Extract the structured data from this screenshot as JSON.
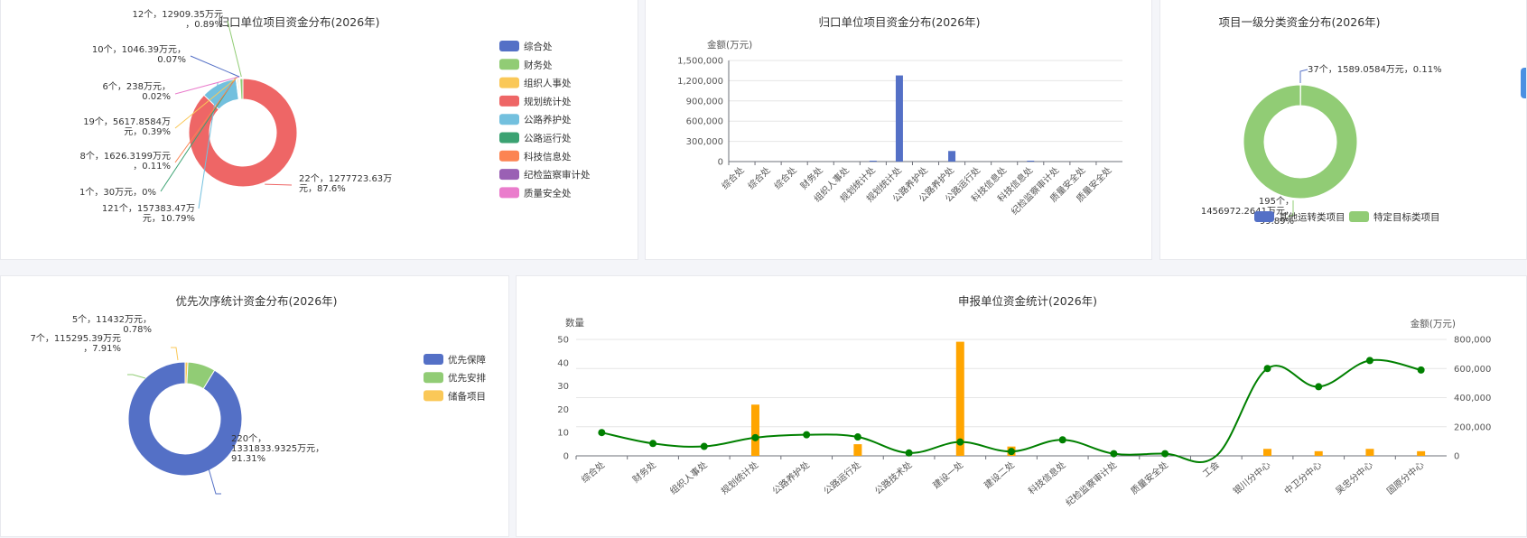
{
  "colors": {
    "blue": "#5470c6",
    "green": "#91cc75",
    "yellow": "#fac858",
    "red": "#ee6666",
    "cyan": "#73c0de",
    "teal": "#3ba272",
    "orange": "#fc8452",
    "purple": "#9a60b4",
    "pink": "#ea7ccc",
    "bar_orange": "#ffa500",
    "line_green": "#008000"
  },
  "chart_data": [
    {
      "type": "pie",
      "title": "归口单位项目资金分布(2026年)",
      "legend": [
        "综合处",
        "财务处",
        "组织人事处",
        "规划统计处",
        "公路养护处",
        "公路运行处",
        "科技信息处",
        "纪检监察审计处",
        "质量安全处"
      ],
      "slices": [
        {
          "name": "规划统计处",
          "value": 1277723.63,
          "label_lines": [
            "22个，1277723.63万",
            "元，87.6%"
          ]
        },
        {
          "name": "公路养护处",
          "value": 157383.47,
          "label_lines": [
            "121个，157383.47万",
            "元，10.79%"
          ]
        },
        {
          "name": "公路运行处",
          "value": 30,
          "label_lines": [
            "1个，30万元，0%"
          ]
        },
        {
          "name": "科技信息处",
          "value": 1626.3199,
          "label_lines": [
            "8个，1626.3199万元",
            "，0.11%"
          ]
        },
        {
          "name": "组织人事处",
          "value": 5617.8584,
          "label_lines": [
            "19个，5617.8584万",
            "元，0.39%"
          ]
        },
        {
          "name": "质量安全处",
          "value": 238,
          "label_lines": [
            "6个，238万元，",
            "0.02%"
          ]
        },
        {
          "name": "综合处",
          "value": 1046.39,
          "label_lines": [
            "10个，1046.39万元，",
            "0.07%"
          ]
        },
        {
          "name": "财务处",
          "value": 12909.35,
          "label_lines": [
            "12个，12909.35万元",
            "，0.89%"
          ]
        }
      ]
    },
    {
      "type": "bar",
      "title": "归口单位项目资金分布(2026年)",
      "ylabel": "金额(万元)",
      "yticks": [
        "0",
        "300,000",
        "600,000",
        "900,000",
        "1,200,000",
        "1,500,000"
      ],
      "ylim": [
        0,
        1500000
      ],
      "categories": [
        "综合处",
        "综合处",
        "综合处",
        "财务处",
        "组织人事处",
        "规划统计处",
        "规划统计处",
        "公路养护处",
        "公路养护处",
        "公路运行处",
        "科技信息处",
        "科技信息处",
        "纪检监察审计处",
        "质量安全处",
        "质量安全处"
      ],
      "values": [
        0,
        0,
        0,
        0,
        0,
        5000,
        1278000,
        0,
        157000,
        0,
        0,
        1500,
        0,
        0,
        0
      ]
    },
    {
      "type": "pie",
      "title": "项目一级分类资金分布(2026年)",
      "legend": [
        "其他运转类项目",
        "特定目标类项目"
      ],
      "slices": [
        {
          "name": "其他运转类项目",
          "value": 1589.0584,
          "label_lines": [
            "37个，1589.0584万元，0.11%"
          ]
        },
        {
          "name": "特定目标类项目",
          "value": 1456972.2641,
          "label_lines": [
            "195个，",
            "1456972.2641万元，",
            "99.89%"
          ]
        }
      ]
    },
    {
      "type": "pie",
      "title": "优先次序统计资金分布(2026年)",
      "legend": [
        "优先保障",
        "优先安排",
        "储备项目"
      ],
      "slices": [
        {
          "name": "优先保障",
          "value": 1331833.9325,
          "label_lines": [
            "220个，",
            "1331833.9325万元，",
            "91.31%"
          ]
        },
        {
          "name": "优先安排",
          "value": 115295.39,
          "label_lines": [
            "7个，115295.39万元",
            "，7.91%"
          ]
        },
        {
          "name": "储备项目",
          "value": 11432,
          "label_lines": [
            "5个，11432万元，",
            "0.78%"
          ]
        }
      ]
    },
    {
      "type": "bar",
      "title": "申报单位资金统计(2026年)",
      "ylabel": "数量",
      "ylabel2": "金额(万元)",
      "yticks": [
        "0",
        "10",
        "20",
        "30",
        "40",
        "50"
      ],
      "yticks2": [
        "0",
        "200,000",
        "400,000",
        "600,000",
        "800,000"
      ],
      "ylim": [
        0,
        50
      ],
      "ylim2": [
        0,
        800000
      ],
      "categories": [
        "综合处",
        "财务处",
        "组织人事处",
        "规划统计处",
        "公路养护处",
        "公路运行处",
        "公路技术处",
        "建设一处",
        "建设二处",
        "科技信息处",
        "纪检监察审计处",
        "质量安全处",
        "工会",
        "银川分中心",
        "中卫分中心",
        "吴忠分中心",
        "固原分中心"
      ],
      "series": [
        {
          "type": "bar",
          "values": [
            0,
            0,
            0,
            22,
            0,
            5,
            0,
            49,
            4,
            0,
            0,
            0,
            0,
            3,
            2,
            3,
            2
          ]
        },
        {
          "type": "line",
          "values": [
            160000,
            85000,
            65000,
            125000,
            145000,
            130000,
            20000,
            95000,
            30000,
            110000,
            15000,
            15000,
            0,
            600000,
            475000,
            655000,
            590000
          ]
        }
      ]
    }
  ]
}
